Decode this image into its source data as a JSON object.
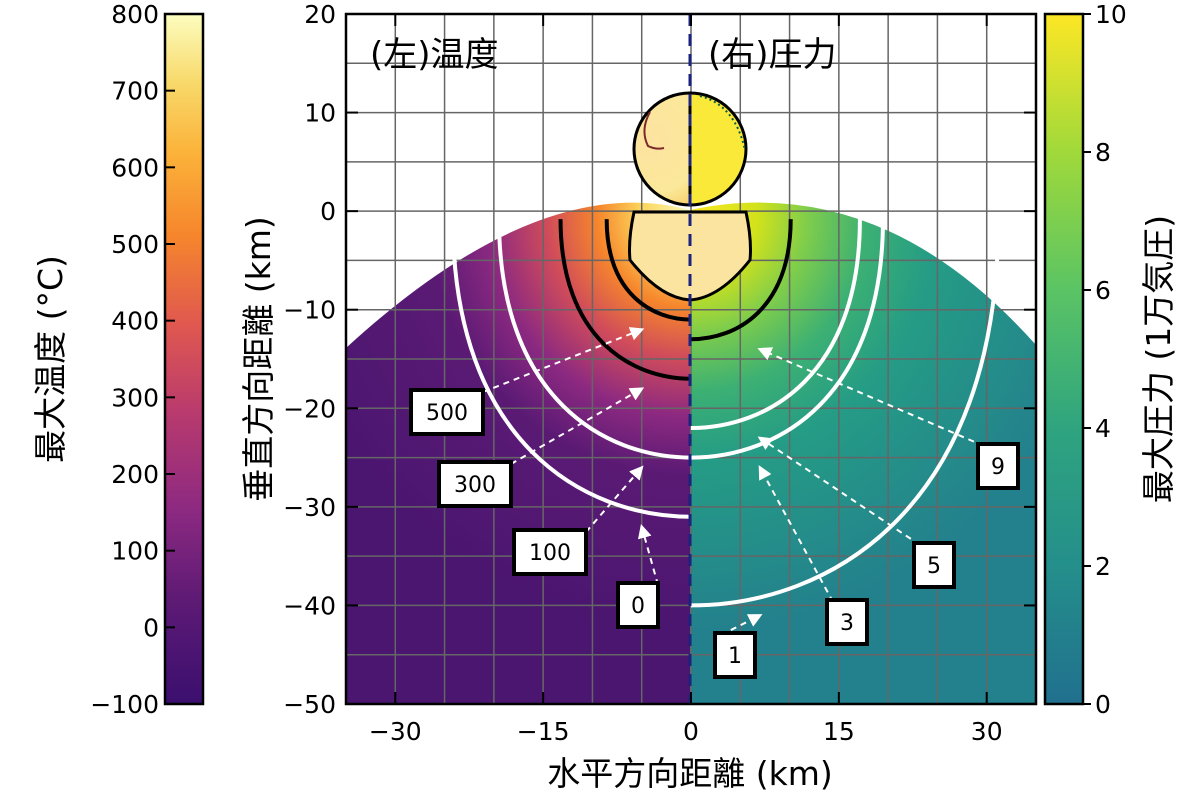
{
  "chart_data": {
    "type": "heatmap",
    "panels": {
      "left": "(左)温度",
      "right": "(右)圧力"
    },
    "xlabel": "水平方向距離 (km)",
    "ylabel": "垂直方向距離 (km)",
    "xlim": [
      -35,
      35
    ],
    "ylim": [
      -50,
      20
    ],
    "xticks": [
      -30,
      -15,
      0,
      15,
      30
    ],
    "yticks": [
      20,
      10,
      0,
      -10,
      -20,
      -30,
      -40,
      -50
    ],
    "grid": true,
    "temperature_colorbar": {
      "label": "最大温度 (°C)",
      "range": [
        -100,
        800
      ],
      "ticks": [
        800,
        700,
        600,
        500,
        400,
        300,
        200,
        100,
        0,
        -100
      ],
      "colormap": "inferno",
      "position": "left"
    },
    "pressure_colorbar": {
      "label": "最大圧力 (1万気圧)",
      "range": [
        0,
        10
      ],
      "ticks": [
        10,
        8,
        6,
        4,
        2,
        0
      ],
      "colormap": "viridis",
      "position": "right"
    },
    "temperature_contours": [
      {
        "label": "500",
        "depth": -11
      },
      {
        "label": "300",
        "depth": -17
      },
      {
        "label": "100",
        "depth": -25
      },
      {
        "label": "0",
        "depth": -31
      }
    ],
    "pressure_contours": [
      {
        "label": "9",
        "depth": -13
      },
      {
        "label": "5",
        "depth": -22
      },
      {
        "label": "3",
        "depth": -25
      },
      {
        "label": "1",
        "depth": -40
      }
    ],
    "impactor": {
      "center": [
        0,
        6
      ],
      "radius": 6
    },
    "colors": {
      "temperature_contour": "#ffffff",
      "pressure_contour": "#ffffff",
      "black_contour": "#000000",
      "center_line": "#1a237e",
      "grid": "#666666"
    }
  }
}
